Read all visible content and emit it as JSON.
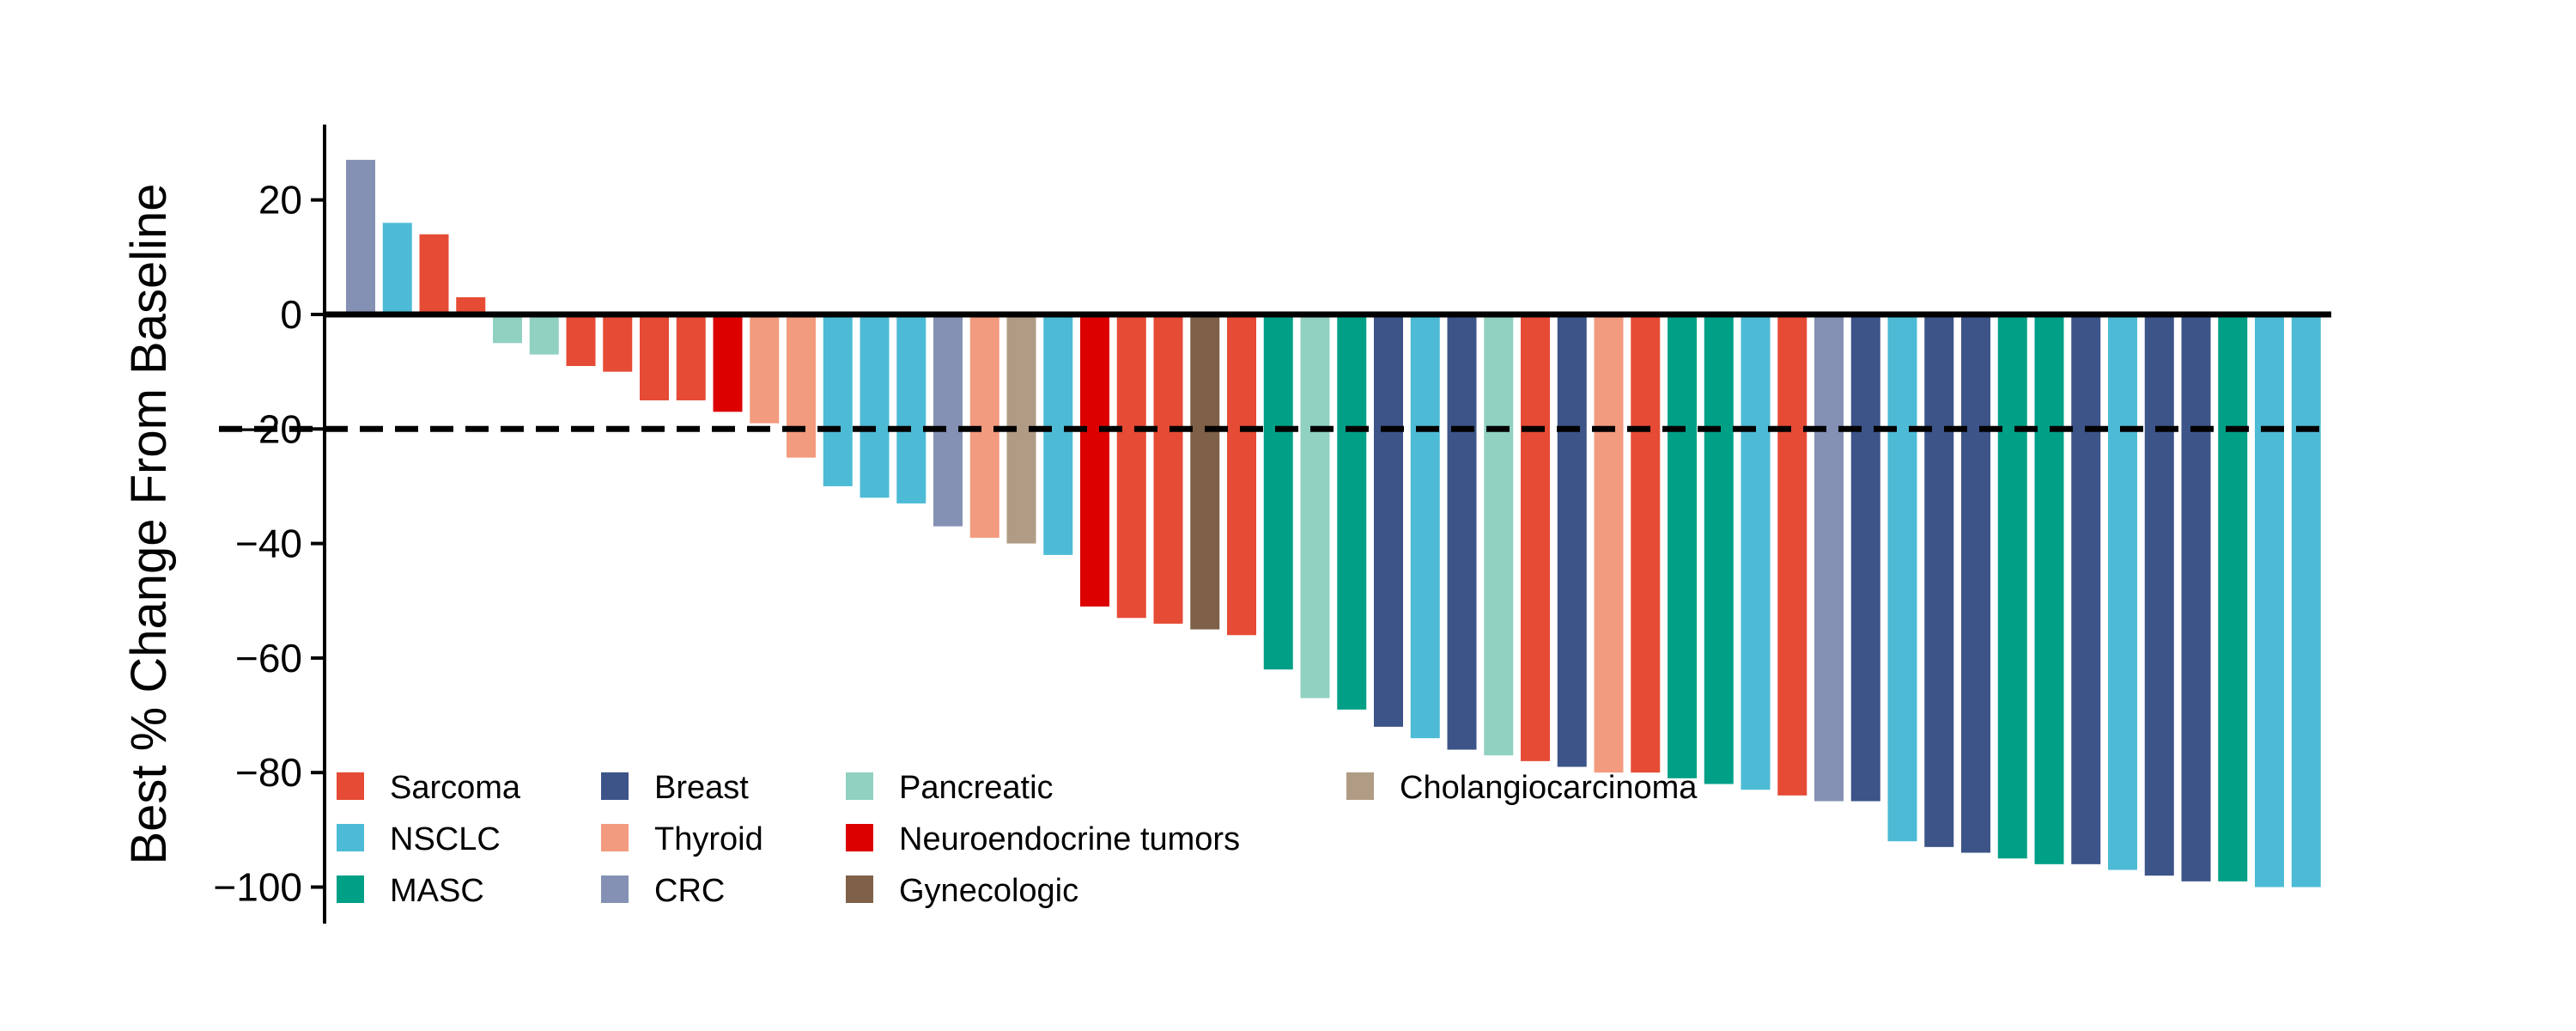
{
  "chart_data": {
    "type": "bar",
    "ylabel": "Best % Change From Baseline",
    "xlabel": "",
    "title": "",
    "ylim": [
      -106,
      34
    ],
    "yticks": [
      20,
      0,
      -20,
      -40,
      -60,
      -80,
      -100
    ],
    "threshold_line": -20,
    "grid": false,
    "legend_position": "bottom-left",
    "colors": {
      "Sarcoma": "#E64B35",
      "NSCLC": "#4DBBD5",
      "MASC": "#00A087",
      "Breast": "#3C5488",
      "Thyroid": "#F39B7F",
      "CRC": "#8491B4",
      "Pancreatic": "#91D1C2",
      "Neuroendocrine tumors": "#DC0000",
      "Gynecologic": "#7E6148",
      "Cholangiocarcinoma": "#B09C85"
    },
    "legend": [
      "Sarcoma",
      "NSCLC",
      "MASC",
      "Breast",
      "Thyroid",
      "CRC",
      "Pancreatic",
      "Neuroendocrine tumors",
      "Gynecologic",
      "Cholangiocarcinoma"
    ],
    "bars": [
      {
        "category": "CRC",
        "value": 27
      },
      {
        "category": "NSCLC",
        "value": 16
      },
      {
        "category": "Sarcoma",
        "value": 14
      },
      {
        "category": "Sarcoma",
        "value": 3
      },
      {
        "category": "Pancreatic",
        "value": -5
      },
      {
        "category": "Pancreatic",
        "value": -7
      },
      {
        "category": "Sarcoma",
        "value": -9
      },
      {
        "category": "Sarcoma",
        "value": -10
      },
      {
        "category": "Sarcoma",
        "value": -15
      },
      {
        "category": "Sarcoma",
        "value": -15
      },
      {
        "category": "Neuroendocrine tumors",
        "value": -17
      },
      {
        "category": "Thyroid",
        "value": -19
      },
      {
        "category": "Thyroid",
        "value": -25
      },
      {
        "category": "NSCLC",
        "value": -30
      },
      {
        "category": "NSCLC",
        "value": -32
      },
      {
        "category": "NSCLC",
        "value": -33
      },
      {
        "category": "CRC",
        "value": -37
      },
      {
        "category": "Thyroid",
        "value": -39
      },
      {
        "category": "Cholangiocarcinoma",
        "value": -40
      },
      {
        "category": "NSCLC",
        "value": -42
      },
      {
        "category": "Neuroendocrine tumors",
        "value": -51
      },
      {
        "category": "Sarcoma",
        "value": -53
      },
      {
        "category": "Sarcoma",
        "value": -54
      },
      {
        "category": "Gynecologic",
        "value": -55
      },
      {
        "category": "Sarcoma",
        "value": -56
      },
      {
        "category": "MASC",
        "value": -62
      },
      {
        "category": "Pancreatic",
        "value": -67
      },
      {
        "category": "MASC",
        "value": -69
      },
      {
        "category": "Breast",
        "value": -72
      },
      {
        "category": "NSCLC",
        "value": -74
      },
      {
        "category": "Breast",
        "value": -76
      },
      {
        "category": "Pancreatic",
        "value": -77
      },
      {
        "category": "Sarcoma",
        "value": -78
      },
      {
        "category": "Breast",
        "value": -79
      },
      {
        "category": "Thyroid",
        "value": -80
      },
      {
        "category": "Sarcoma",
        "value": -80
      },
      {
        "category": "MASC",
        "value": -81
      },
      {
        "category": "MASC",
        "value": -82
      },
      {
        "category": "NSCLC",
        "value": -83
      },
      {
        "category": "Sarcoma",
        "value": -84
      },
      {
        "category": "CRC",
        "value": -85
      },
      {
        "category": "Breast",
        "value": -85
      },
      {
        "category": "NSCLC",
        "value": -92
      },
      {
        "category": "Breast",
        "value": -93
      },
      {
        "category": "Breast",
        "value": -94
      },
      {
        "category": "MASC",
        "value": -95
      },
      {
        "category": "MASC",
        "value": -96
      },
      {
        "category": "Breast",
        "value": -96
      },
      {
        "category": "NSCLC",
        "value": -97
      },
      {
        "category": "Breast",
        "value": -98
      },
      {
        "category": "Breast",
        "value": -99
      },
      {
        "category": "MASC",
        "value": -99
      },
      {
        "category": "NSCLC",
        "value": -100
      },
      {
        "category": "NSCLC",
        "value": -100
      }
    ]
  }
}
